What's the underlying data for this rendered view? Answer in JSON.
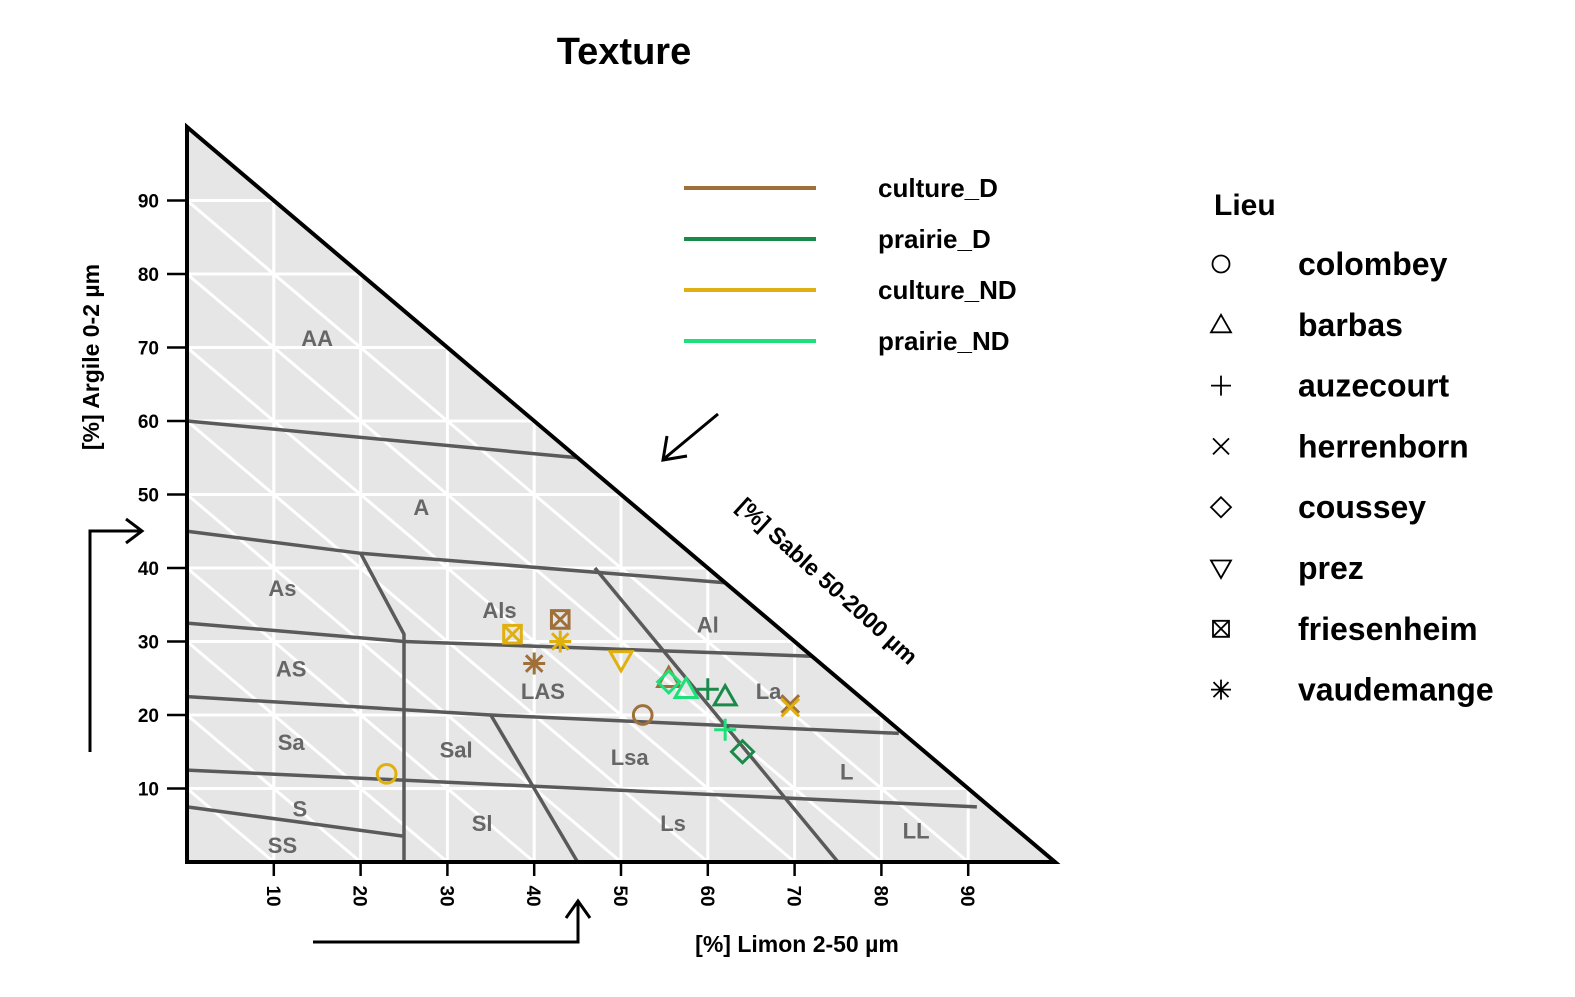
{
  "chart_data": {
    "type": "ternary-scatter",
    "title": "Texture",
    "axes": {
      "clay": {
        "label": "[%] Argile 0-2 µm",
        "ticks": [
          10,
          20,
          30,
          40,
          50,
          60,
          70,
          80,
          90
        ]
      },
      "silt": {
        "label": "[%] Limon 2-50 µm",
        "ticks": [
          10,
          20,
          30,
          40,
          50,
          60,
          70,
          80,
          90
        ]
      },
      "sand": {
        "label": "[%] Sable 50-2000 µm"
      }
    },
    "grid": true,
    "texture_classes": [
      "AA",
      "A",
      "As",
      "Als",
      "Al",
      "AS",
      "LAS",
      "La",
      "Sa",
      "Sal",
      "Lsa",
      "L",
      "S",
      "Sl",
      "Ls",
      "LL",
      "SS"
    ],
    "class_boundaries": [
      [
        [
          0,
          60
        ],
        [
          45,
          55
        ]
      ],
      [
        [
          0,
          45
        ],
        [
          20,
          42
        ],
        [
          62,
          38
        ]
      ],
      [
        [
          0,
          32.5
        ],
        [
          25,
          30
        ],
        [
          72,
          28
        ]
      ],
      [
        [
          0,
          22.5
        ],
        [
          35,
          20
        ],
        [
          82,
          17.5
        ]
      ],
      [
        [
          0,
          12.5
        ],
        [
          91,
          7.5
        ]
      ],
      [
        [
          0,
          7.5
        ],
        [
          25,
          3.5
        ]
      ],
      [
        [
          20,
          42
        ],
        [
          25,
          31
        ],
        [
          25,
          0
        ]
      ],
      [
        [
          35,
          20
        ],
        [
          45,
          0
        ]
      ],
      [
        [
          47,
          40
        ],
        [
          75,
          0
        ]
      ]
    ],
    "legend_color": {
      "position": "top-center",
      "series": [
        {
          "name": "culture_D",
          "color": "#a0703a"
        },
        {
          "name": "prairie_D",
          "color": "#1a8a4a"
        },
        {
          "name": "culture_ND",
          "color": "#e0b010"
        },
        {
          "name": "prairie_ND",
          "color": "#1ee07a"
        }
      ]
    },
    "legend_shape": {
      "title": "Lieu",
      "position": "right",
      "items": [
        {
          "name": "colombey",
          "shape": "circle"
        },
        {
          "name": "barbas",
          "shape": "triangle-up"
        },
        {
          "name": "auzecourt",
          "shape": "plus"
        },
        {
          "name": "herrenborn",
          "shape": "cross"
        },
        {
          "name": "coussey",
          "shape": "diamond"
        },
        {
          "name": "prez",
          "shape": "triangle-down"
        },
        {
          "name": "friesenheim",
          "shape": "square-cross"
        },
        {
          "name": "vaudemange",
          "shape": "asterisk"
        }
      ]
    },
    "points": [
      {
        "series": "culture_D",
        "lieu": "colombey",
        "silt": 52.5,
        "clay": 20
      },
      {
        "series": "culture_ND",
        "lieu": "colombey",
        "silt": 23,
        "clay": 12
      },
      {
        "series": "culture_D",
        "lieu": "friesenheim",
        "silt": 43,
        "clay": 33
      },
      {
        "series": "culture_ND",
        "lieu": "friesenheim",
        "silt": 37.5,
        "clay": 31
      },
      {
        "series": "culture_D",
        "lieu": "vaudemange",
        "silt": 40,
        "clay": 27
      },
      {
        "series": "culture_ND",
        "lieu": "vaudemange",
        "silt": 43,
        "clay": 30
      },
      {
        "series": "culture_ND",
        "lieu": "prez",
        "silt": 50,
        "clay": 27.5
      },
      {
        "series": "culture_D",
        "lieu": "barbas",
        "silt": 55.5,
        "clay": 25
      },
      {
        "series": "prairie_ND",
        "lieu": "barbas",
        "silt": 57.5,
        "clay": 23.5
      },
      {
        "series": "prairie_D",
        "lieu": "barbas",
        "silt": 62,
        "clay": 22.5
      },
      {
        "series": "prairie_ND",
        "lieu": "coussey",
        "silt": 55.5,
        "clay": 24.5
      },
      {
        "series": "prairie_D",
        "lieu": "coussey",
        "silt": 64,
        "clay": 15
      },
      {
        "series": "prairie_D",
        "lieu": "auzecourt",
        "silt": 60,
        "clay": 23.5
      },
      {
        "series": "prairie_ND",
        "lieu": "auzecourt",
        "silt": 62,
        "clay": 18
      },
      {
        "series": "culture_D",
        "lieu": "herrenborn",
        "silt": 69.5,
        "clay": 21.5
      },
      {
        "series": "culture_ND",
        "lieu": "herrenborn",
        "silt": 69.5,
        "clay": 21
      }
    ]
  }
}
